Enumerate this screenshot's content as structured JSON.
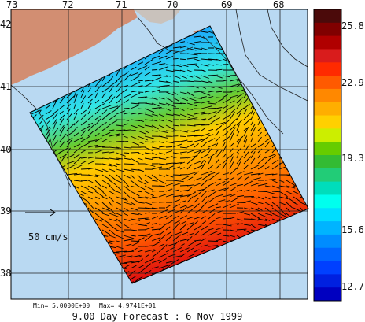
{
  "map": {
    "lon_ticks": [
      "73",
      "72",
      "71",
      "70",
      "69",
      "68"
    ],
    "lat_ticks": [
      "42",
      "41",
      "40",
      "39",
      "38"
    ],
    "scale_label": "50 cm/s",
    "min_label": "Min= 5.0000E+00",
    "max_label": "Max= 4.9741E+01",
    "caption": "9.00 Day Forecast :  6 Nov 1999",
    "colors": {
      "ocean": "#b9d9f2",
      "land": "#d28e72",
      "frame": "#000000"
    }
  },
  "colorbar": {
    "tick_labels": [
      "25.8",
      "22.9",
      "19.3",
      "15.6",
      "12.7"
    ],
    "colors": [
      "#4b0a0a",
      "#800000",
      "#b00000",
      "#d91c1c",
      "#ff2a00",
      "#ff5a00",
      "#ff8800",
      "#ffae00",
      "#ffd000",
      "#ccee00",
      "#66cc00",
      "#33bb33",
      "#22cc77",
      "#00ddbb",
      "#00ffee",
      "#00ddff",
      "#00b4ff",
      "#008cff",
      "#0066ff",
      "#0040ff",
      "#0020e0",
      "#0000c0"
    ]
  }
}
